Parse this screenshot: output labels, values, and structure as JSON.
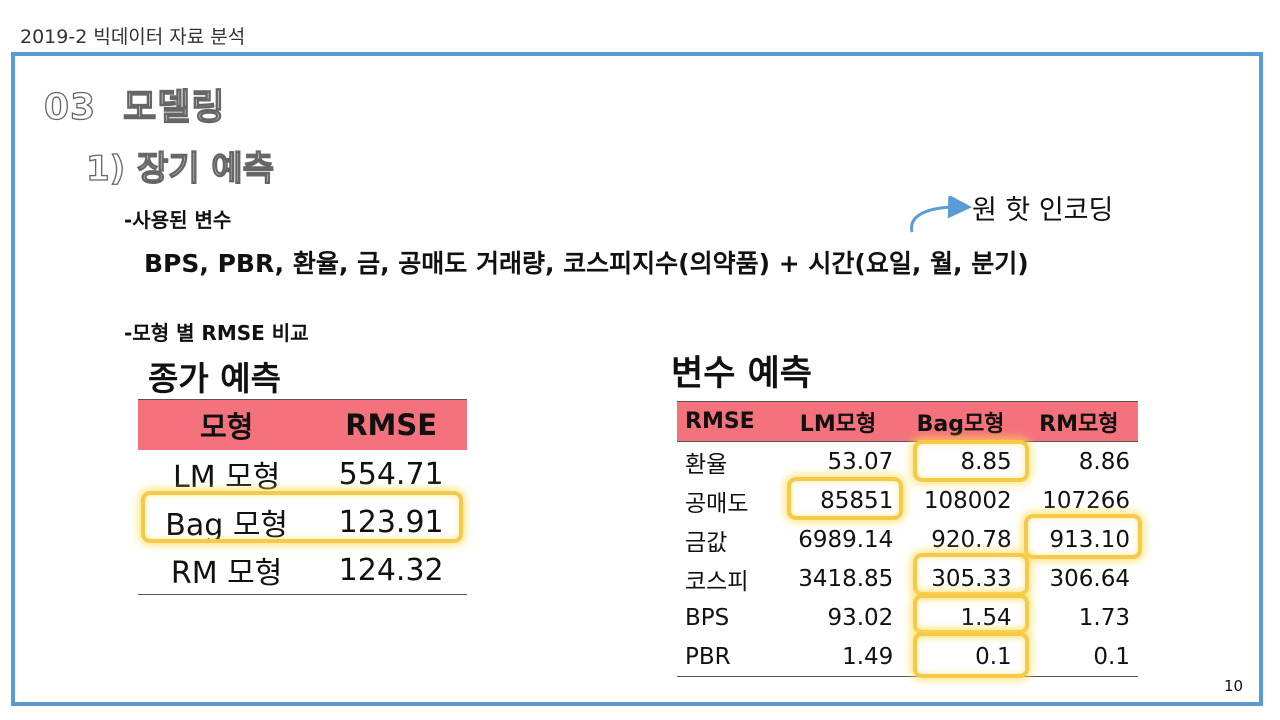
{
  "header": {
    "course_title": "2019-2 빅데이터 자료 분석"
  },
  "slide": {
    "section_title": "03  모델링",
    "subsection_title": "1) 장기 예측",
    "bullet_variables": "-사용된 변수",
    "variables_text": "BPS, PBR, 환율, 금, 공매도 거래량, 코스피지수(의약품) + 시간(요일, 월, 분기)",
    "annotation": "원 핫 인코딩",
    "bullet_compare": "-모형 별 RMSE 비교",
    "page_number": "10"
  },
  "price_prediction": {
    "title": "종가 예측",
    "headers": [
      "모형",
      "RMSE"
    ],
    "rows": [
      {
        "model": "LM 모형",
        "rmse": "554.71",
        "highlight": false
      },
      {
        "model": "Bag 모형",
        "rmse": "123.91",
        "highlight": true
      },
      {
        "model": "RM 모형",
        "rmse": "124.32",
        "highlight": false
      }
    ]
  },
  "variable_prediction": {
    "title": "변수 예측",
    "headers": [
      "RMSE",
      "LM모형",
      "Bag모형",
      "RM모형"
    ],
    "rows": [
      {
        "var": "환율",
        "lm": "53.07",
        "bag": "8.85",
        "rm": "8.86",
        "best": "bag"
      },
      {
        "var": "공매도",
        "lm": "85851",
        "bag": "108002",
        "rm": "107266",
        "best": "lm"
      },
      {
        "var": "금값",
        "lm": "6989.14",
        "bag": "920.78",
        "rm": "913.10",
        "best": "rm"
      },
      {
        "var": "코스피",
        "lm": "3418.85",
        "bag": "305.33",
        "rm": "306.64",
        "best": "bag"
      },
      {
        "var": "BPS",
        "lm": "93.02",
        "bag": "1.54",
        "rm": "1.73",
        "best": "bag"
      },
      {
        "var": "PBR",
        "lm": "1.49",
        "bag": "0.1",
        "rm": "0.1",
        "best": "bag"
      }
    ]
  },
  "colors": {
    "frame": "#5b9bd5",
    "table_header": "#f4727c",
    "highlight": "#f7c948",
    "arrow": "#5b9bd5"
  }
}
